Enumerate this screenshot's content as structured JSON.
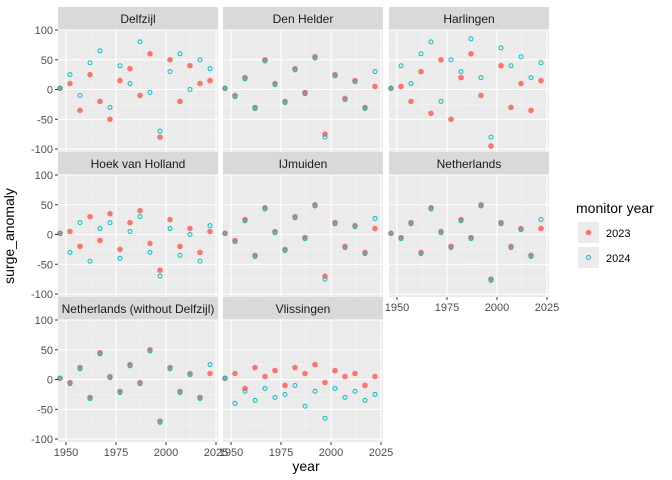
{
  "chart_data": {
    "type": "scatter",
    "xlabel": "year",
    "ylabel": "surge_anomaly",
    "xlim": [
      1946,
      2026
    ],
    "ylim": [
      -105,
      100
    ],
    "xticks": [
      1950,
      1975,
      2000,
      2025
    ],
    "yticks": [
      100,
      50,
      0,
      -50,
      -100
    ],
    "grid": true,
    "facet_layout": "3x3 grid, 8 panels",
    "legend": {
      "title": "monitor year",
      "placement": "right",
      "entries": [
        {
          "label": "2023",
          "color": "#F8766D",
          "marker": "filled-circle"
        },
        {
          "label": "2024",
          "color": "#00BFC4",
          "marker": "open-circle"
        }
      ]
    },
    "panels": [
      {
        "name": "Delfzijl",
        "series": [
          {
            "name": "2023",
            "x": [
              1947,
              1952,
              1957,
              1962,
              1967,
              1972,
              1977,
              1982,
              1987,
              1992,
              1997,
              2002,
              2007,
              2012,
              2017,
              2022
            ],
            "y": [
              2,
              10,
              -35,
              25,
              -20,
              -50,
              15,
              35,
              -10,
              60,
              -80,
              50,
              -20,
              40,
              10,
              15
            ]
          },
          {
            "name": "2024",
            "x": [
              1947,
              1952,
              1957,
              1962,
              1967,
              1972,
              1977,
              1982,
              1987,
              1992,
              1997,
              2002,
              2007,
              2012,
              2017,
              2022
            ],
            "y": [
              2,
              25,
              -10,
              45,
              65,
              -30,
              40,
              10,
              80,
              -5,
              -70,
              30,
              60,
              0,
              50,
              35
            ]
          }
        ]
      },
      {
        "name": "Den Helder",
        "series": [
          {
            "name": "2023",
            "x": [
              1947,
              1952,
              1957,
              1962,
              1967,
              1972,
              1977,
              1982,
              1987,
              1992,
              1997,
              2002,
              2007,
              2012,
              2017,
              2022
            ],
            "y": [
              2,
              -10,
              20,
              -30,
              50,
              10,
              -20,
              35,
              -5,
              55,
              -75,
              25,
              -15,
              15,
              -30,
              5
            ]
          },
          {
            "name": "2024",
            "x": [
              1947,
              1952,
              1957,
              1962,
              1967,
              1972,
              1977,
              1982,
              1987,
              1992,
              1997,
              2002,
              2007,
              2012,
              2017,
              2022
            ],
            "y": [
              2,
              -12,
              18,
              -32,
              48,
              8,
              -22,
              33,
              -7,
              53,
              -80,
              23,
              -17,
              13,
              -32,
              30
            ]
          }
        ]
      },
      {
        "name": "Harlingen",
        "series": [
          {
            "name": "2023",
            "x": [
              1947,
              1952,
              1957,
              1962,
              1967,
              1972,
              1977,
              1982,
              1987,
              1992,
              1997,
              2002,
              2007,
              2012,
              2017,
              2022
            ],
            "y": [
              2,
              5,
              -20,
              30,
              -40,
              50,
              -50,
              20,
              60,
              -10,
              -95,
              40,
              -30,
              10,
              -35,
              15
            ]
          },
          {
            "name": "2024",
            "x": [
              1947,
              1952,
              1957,
              1962,
              1967,
              1972,
              1977,
              1982,
              1987,
              1992,
              1997,
              2002,
              2007,
              2012,
              2017,
              2022
            ],
            "y": [
              2,
              40,
              10,
              60,
              80,
              -20,
              50,
              30,
              85,
              20,
              -80,
              70,
              40,
              55,
              20,
              45
            ]
          }
        ]
      },
      {
        "name": "Hoek van Holland",
        "series": [
          {
            "name": "2023",
            "x": [
              1947,
              1952,
              1957,
              1962,
              1967,
              1972,
              1977,
              1982,
              1987,
              1992,
              1997,
              2002,
              2007,
              2012,
              2017,
              2022
            ],
            "y": [
              2,
              5,
              -20,
              30,
              -10,
              35,
              -25,
              20,
              40,
              -15,
              -60,
              25,
              -20,
              10,
              -30,
              5
            ]
          },
          {
            "name": "2024",
            "x": [
              1947,
              1952,
              1957,
              1962,
              1967,
              1972,
              1977,
              1982,
              1987,
              1992,
              1997,
              2002,
              2007,
              2012,
              2017,
              2022
            ],
            "y": [
              2,
              -30,
              20,
              -45,
              10,
              20,
              -40,
              5,
              30,
              -30,
              -70,
              10,
              -35,
              0,
              -45,
              15
            ]
          }
        ]
      },
      {
        "name": "IJmuiden",
        "series": [
          {
            "name": "2023",
            "x": [
              1947,
              1952,
              1957,
              1962,
              1967,
              1972,
              1977,
              1982,
              1987,
              1992,
              1997,
              2002,
              2007,
              2012,
              2017,
              2022
            ],
            "y": [
              2,
              -10,
              25,
              -35,
              45,
              5,
              -25,
              30,
              -5,
              50,
              -70,
              20,
              -20,
              15,
              -30,
              10
            ]
          },
          {
            "name": "2024",
            "x": [
              1947,
              1952,
              1957,
              1962,
              1967,
              1972,
              1977,
              1982,
              1987,
              1992,
              1997,
              2002,
              2007,
              2012,
              2017,
              2022
            ],
            "y": [
              2,
              -12,
              23,
              -37,
              43,
              3,
              -27,
              28,
              -7,
              48,
              -75,
              18,
              -22,
              13,
              -32,
              27
            ]
          }
        ]
      },
      {
        "name": "Netherlands",
        "series": [
          {
            "name": "2023",
            "x": [
              1947,
              1952,
              1957,
              1962,
              1967,
              1972,
              1977,
              1982,
              1987,
              1992,
              1997,
              2002,
              2007,
              2012,
              2017,
              2022
            ],
            "y": [
              2,
              -5,
              20,
              -30,
              45,
              5,
              -20,
              25,
              -5,
              50,
              -75,
              20,
              -20,
              10,
              -35,
              10
            ]
          },
          {
            "name": "2024",
            "x": [
              1947,
              1952,
              1957,
              1962,
              1967,
              1972,
              1977,
              1982,
              1987,
              1992,
              1997,
              2002,
              2007,
              2012,
              2017,
              2022
            ],
            "y": [
              2,
              -7,
              18,
              -32,
              43,
              3,
              -22,
              23,
              -7,
              48,
              -77,
              18,
              -22,
              8,
              -37,
              25
            ]
          }
        ]
      },
      {
        "name": "Netherlands (without Delfzijl)",
        "series": [
          {
            "name": "2023",
            "x": [
              1947,
              1952,
              1957,
              1962,
              1967,
              1972,
              1977,
              1982,
              1987,
              1992,
              1997,
              2002,
              2007,
              2012,
              2017,
              2022
            ],
            "y": [
              2,
              -5,
              20,
              -30,
              45,
              5,
              -20,
              25,
              -5,
              50,
              -70,
              20,
              -20,
              10,
              -30,
              10
            ]
          },
          {
            "name": "2024",
            "x": [
              1947,
              1952,
              1957,
              1962,
              1967,
              1972,
              1977,
              1982,
              1987,
              1992,
              1997,
              2002,
              2007,
              2012,
              2017,
              2022
            ],
            "y": [
              2,
              -7,
              18,
              -32,
              43,
              3,
              -22,
              23,
              -7,
              48,
              -72,
              18,
              -22,
              8,
              -32,
              25
            ]
          }
        ]
      },
      {
        "name": "Vlissingen",
        "series": [
          {
            "name": "2023",
            "x": [
              1947,
              1952,
              1957,
              1962,
              1967,
              1972,
              1977,
              1982,
              1987,
              1992,
              1997,
              2002,
              2007,
              2012,
              2017,
              2022
            ],
            "y": [
              2,
              10,
              -15,
              20,
              5,
              15,
              -10,
              20,
              10,
              25,
              -5,
              15,
              5,
              10,
              -10,
              5
            ]
          },
          {
            "name": "2024",
            "x": [
              1947,
              1952,
              1957,
              1962,
              1967,
              1972,
              1977,
              1982,
              1987,
              1992,
              1997,
              2002,
              2007,
              2012,
              2017,
              2022
            ],
            "y": [
              2,
              -40,
              -20,
              -35,
              -15,
              -30,
              -25,
              -10,
              -45,
              -20,
              -65,
              -15,
              -30,
              -20,
              -35,
              -25
            ]
          }
        ]
      }
    ]
  }
}
